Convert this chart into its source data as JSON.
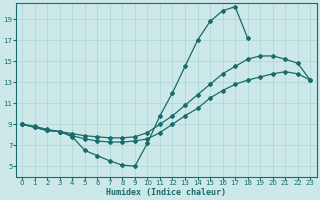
{
  "xlabel": "Humidex (Indice chaleur)",
  "bg_color": "#cce8e8",
  "line_color": "#1a6b6b",
  "grid_color": "#b0d8d8",
  "xlim": [
    -0.5,
    23.5
  ],
  "ylim": [
    4.0,
    20.5
  ],
  "xticks": [
    0,
    1,
    2,
    3,
    4,
    5,
    6,
    7,
    8,
    9,
    10,
    11,
    12,
    13,
    14,
    15,
    16,
    17,
    18,
    19,
    20,
    21,
    22,
    23
  ],
  "yticks": [
    5,
    7,
    9,
    11,
    13,
    15,
    17,
    19
  ],
  "curve1_x": [
    0,
    1,
    2,
    3,
    4,
    5,
    6,
    7,
    8,
    9,
    10,
    11,
    12,
    13,
    14,
    15,
    16,
    17,
    18
  ],
  "curve1_y": [
    9.0,
    8.7,
    8.4,
    8.3,
    7.8,
    6.5,
    6.0,
    5.5,
    5.1,
    5.0,
    7.2,
    9.8,
    12.0,
    14.5,
    17.0,
    18.8,
    19.8,
    20.2,
    17.2
  ],
  "curve2_x": [
    0,
    1,
    2,
    3,
    4,
    5,
    6,
    7,
    8,
    9,
    10,
    11,
    12,
    13,
    14,
    15,
    16,
    17,
    18,
    19,
    20,
    21,
    22,
    23
  ],
  "curve2_y": [
    9.0,
    8.7,
    8.4,
    8.3,
    7.9,
    7.6,
    7.4,
    7.3,
    7.3,
    7.4,
    7.6,
    8.2,
    9.0,
    9.8,
    10.5,
    11.5,
    12.2,
    12.8,
    13.2,
    13.5,
    13.8,
    14.0,
    13.8,
    13.2
  ],
  "curve3_x": [
    0,
    1,
    2,
    3,
    4,
    5,
    6,
    7,
    8,
    9,
    10,
    11,
    12,
    13,
    14,
    15,
    16,
    17,
    18,
    19,
    20,
    21,
    22,
    23
  ],
  "curve3_y": [
    9.0,
    8.8,
    8.5,
    8.3,
    8.1,
    7.9,
    7.8,
    7.7,
    7.7,
    7.8,
    8.2,
    9.0,
    9.8,
    10.8,
    11.8,
    12.8,
    13.8,
    14.5,
    15.2,
    15.5,
    15.5,
    15.2,
    14.8,
    13.2
  ],
  "xlabel_fontsize": 6.0,
  "tick_fontsize": 5.0
}
